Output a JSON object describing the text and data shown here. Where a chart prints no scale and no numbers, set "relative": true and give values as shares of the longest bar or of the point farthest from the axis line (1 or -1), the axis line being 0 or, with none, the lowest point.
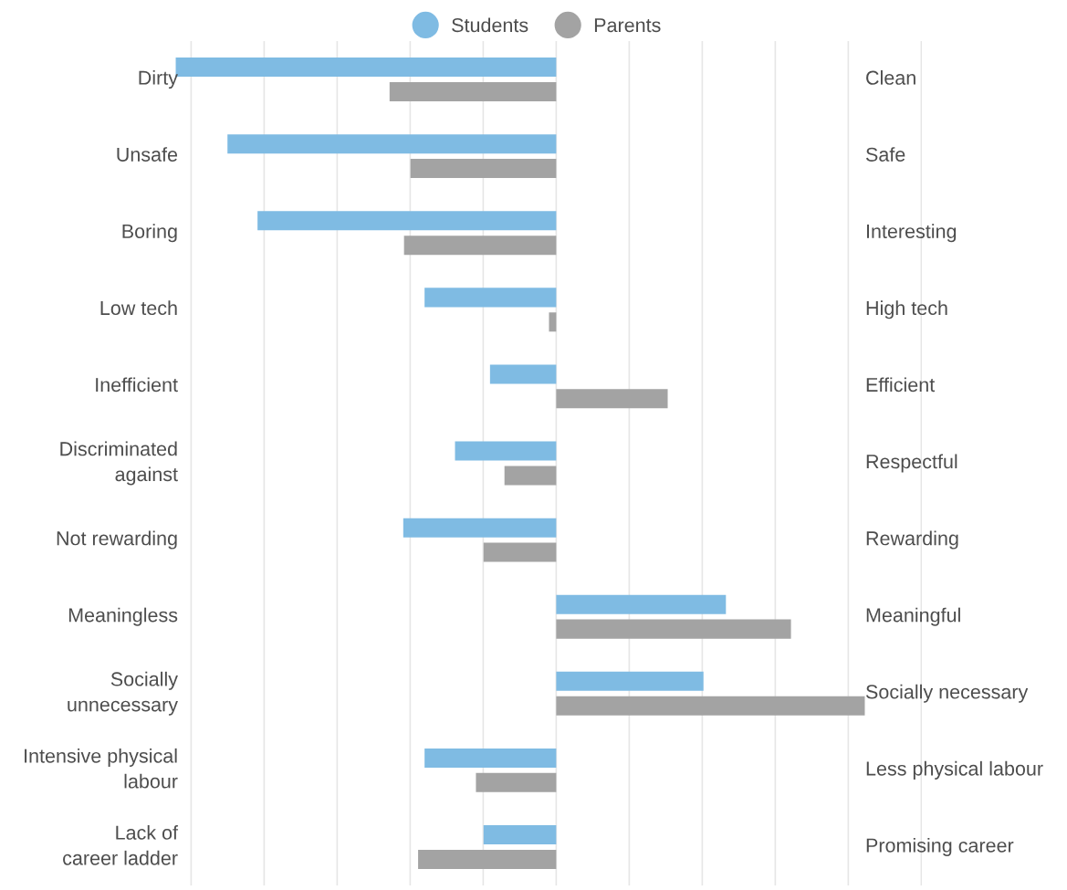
{
  "chart_data": {
    "type": "bar",
    "orientation": "horizontal",
    "relative": true,
    "categories": [
      "Dirty",
      "Unsafe",
      "Boring",
      "Low tech",
      "Inefficient",
      "Discriminated\nagainst",
      "Not rewarding",
      "Meaningless",
      "Socially\nunnecessary",
      "Intensive physical\nlabour",
      "Lack of\ncareer ladder"
    ],
    "y2_categories": [
      "Clean",
      "Safe",
      "Interesting",
      "High tech",
      "Efficient",
      "Respectful",
      "Rewarding",
      "Meaningful",
      "Socially necessary",
      "Less physical labour",
      "Promising career"
    ],
    "series": [
      {
        "name": "Students",
        "color": "#7fbbe3",
        "values": [
          -1,
          -0.864,
          -0.785,
          -0.346,
          -0.174,
          -0.266,
          -0.402,
          0.446,
          0.387,
          -0.346,
          -0.191
        ]
      },
      {
        "name": "Parents",
        "color": "#a3a3a3",
        "values": [
          -0.438,
          -0.383,
          -0.4,
          -0.019,
          0.293,
          -0.136,
          -0.191,
          0.617,
          0.811,
          -0.211,
          -0.363
        ]
      }
    ],
    "grid": "x",
    "legend": "top"
  }
}
